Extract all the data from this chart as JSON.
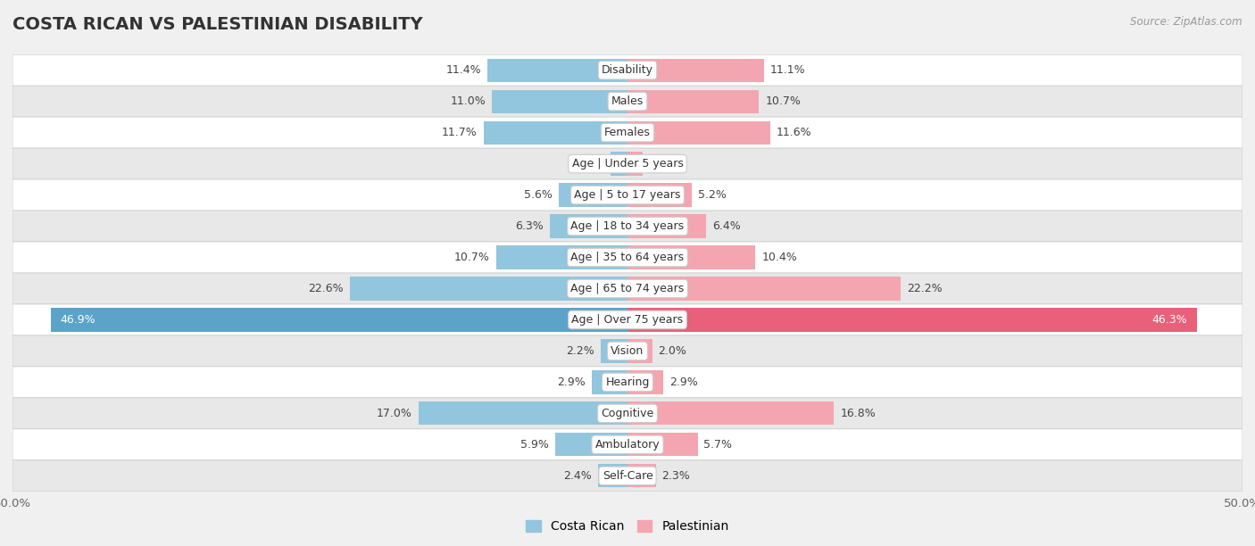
{
  "title": "COSTA RICAN VS PALESTINIAN DISABILITY",
  "source": "Source: ZipAtlas.com",
  "categories": [
    "Disability",
    "Males",
    "Females",
    "Age | Under 5 years",
    "Age | 5 to 17 years",
    "Age | 18 to 34 years",
    "Age | 35 to 64 years",
    "Age | 65 to 74 years",
    "Age | Over 75 years",
    "Vision",
    "Hearing",
    "Cognitive",
    "Ambulatory",
    "Self-Care"
  ],
  "costa_rican": [
    11.4,
    11.0,
    11.7,
    1.4,
    5.6,
    6.3,
    10.7,
    22.6,
    46.9,
    2.2,
    2.9,
    17.0,
    5.9,
    2.4
  ],
  "palestinian": [
    11.1,
    10.7,
    11.6,
    1.2,
    5.2,
    6.4,
    10.4,
    22.2,
    46.3,
    2.0,
    2.9,
    16.8,
    5.7,
    2.3
  ],
  "costa_rican_color": "#92C5DE",
  "palestinian_color": "#F4A6B0",
  "over75_costa_rican_color": "#5BA3C9",
  "over75_palestinian_color": "#E8607A",
  "max_val": 50.0,
  "background_color": "#f0f0f0",
  "row_colors": [
    "#ffffff",
    "#e8e8e8"
  ],
  "title_fontsize": 14,
  "label_fontsize": 9,
  "value_fontsize": 9,
  "bar_height": 0.75,
  "legend_labels": [
    "Costa Rican",
    "Palestinian"
  ]
}
